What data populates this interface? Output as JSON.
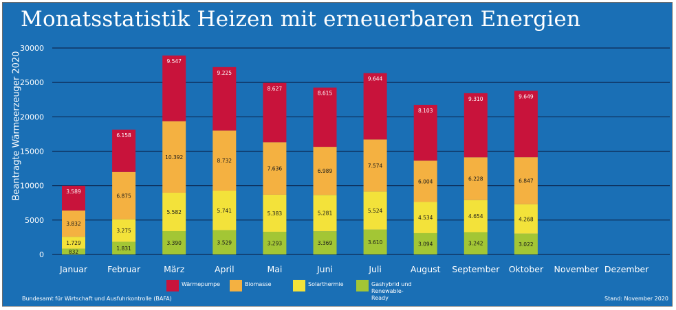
{
  "chart_data": {
    "type": "bar",
    "stacked": true,
    "title": "Monatsstatistik Heizen mit erneuerbaren Energien",
    "ylabel": "Beantragte Wärmeerzeuger 2020",
    "xlabel": "",
    "ylim": [
      0,
      30000
    ],
    "yticks": [
      0,
      5000,
      10000,
      15000,
      20000,
      25000,
      30000
    ],
    "grid": true,
    "legend_position": "bottom",
    "categories": [
      "Januar",
      "Februar",
      "März",
      "April",
      "Mai",
      "Juni",
      "Juli",
      "August",
      "September",
      "Oktober",
      "November",
      "Dezember"
    ],
    "series": [
      {
        "name": "Gashybrid und Renewable-Ready",
        "color": "#a3c635",
        "values": [
          832,
          1831,
          3390,
          3529,
          3293,
          3369,
          3610,
          3094,
          3242,
          3022,
          null,
          null
        ],
        "labels": [
          "832",
          "1.831",
          "3.390",
          "3.529",
          "3.293",
          "3.369",
          "3.610",
          "3.094",
          "3.242",
          "3.022",
          "",
          ""
        ]
      },
      {
        "name": "Solarthermie",
        "color": "#f3e23a",
        "values": [
          1729,
          3275,
          5582,
          5741,
          5383,
          5281,
          5524,
          4534,
          4654,
          4268,
          null,
          null
        ],
        "labels": [
          "1.729",
          "3.275",
          "5.582",
          "5.741",
          "5.383",
          "5.281",
          "5.524",
          "4.534",
          "4.654",
          "4.268",
          "",
          ""
        ]
      },
      {
        "name": "Biomasse",
        "color": "#f4b141",
        "values": [
          3832,
          6875,
          10392,
          8732,
          7636,
          6989,
          7574,
          6004,
          6228,
          6847,
          null,
          null
        ],
        "labels": [
          "3.832",
          "6.875",
          "10.392",
          "8.732",
          "7.636",
          "6.989",
          "7.574",
          "6.004",
          "6.228",
          "6.847",
          "",
          ""
        ]
      },
      {
        "name": "Wärmepumpe",
        "color": "#c8133b",
        "values": [
          3589,
          6158,
          9547,
          9225,
          8627,
          8615,
          9644,
          8103,
          9310,
          9649,
          null,
          null
        ],
        "labels": [
          "3.589",
          "6.158",
          "9.547",
          "9.225",
          "8.627",
          "8.615",
          "9.644",
          "8.103",
          "9.310",
          "9.649",
          "",
          ""
        ]
      }
    ]
  },
  "legend": [
    {
      "label": "Wärmepumpe",
      "color": "#c8133b"
    },
    {
      "label": "Biomasse",
      "color": "#f4b141"
    },
    {
      "label": "Solarthermie",
      "color": "#f3e23a"
    },
    {
      "label": "Gashybrid und Renewable-Ready",
      "color": "#a3c635"
    }
  ],
  "source": "Bundesamt für Wirtschaft und Ausfuhrkontrolle (BAFA)",
  "stand": "Stand: November 2020"
}
